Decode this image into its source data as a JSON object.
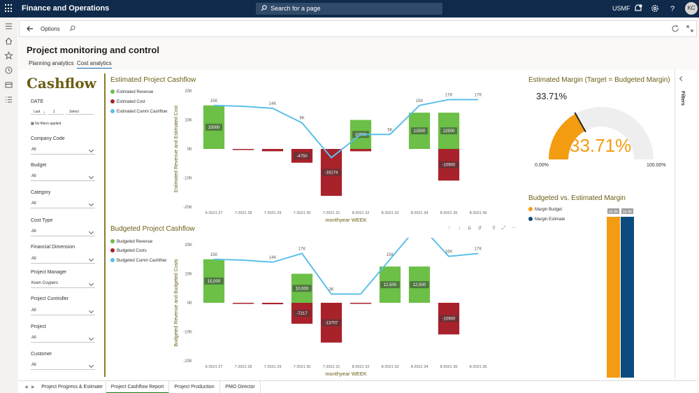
{
  "topbar": {
    "app_title": "Finance and Operations",
    "search_placeholder": "Search for a page",
    "company": "USMF",
    "avatar": "KC"
  },
  "actionbar": {
    "options": "Options"
  },
  "page": {
    "title": "Project monitoring and control",
    "tabs": [
      {
        "label": "Planning analytics"
      },
      {
        "label": "Cost analytics"
      }
    ]
  },
  "slicers": {
    "title": "Cashflow",
    "date": {
      "label": "DATE",
      "period": "Last",
      "count": "1",
      "unit": "Select",
      "no_filters": "No filters applied"
    },
    "items": [
      {
        "label": "Company Code",
        "value": "All"
      },
      {
        "label": "Budget",
        "value": "All"
      },
      {
        "label": "Category",
        "value": "All"
      },
      {
        "label": "Cost Type",
        "value": "All"
      },
      {
        "label": "Financial Dimension",
        "value": "All"
      },
      {
        "label": "Project Manager",
        "value": "Koen Cuypers"
      },
      {
        "label": "Project Controller",
        "value": "All"
      },
      {
        "label": "Project",
        "value": "All"
      },
      {
        "label": "Customer",
        "value": "All"
      }
    ]
  },
  "filters_pane": {
    "label": "Filters"
  },
  "chart_data": [
    {
      "type": "bar",
      "title": "Estimated Project Cashflow",
      "xlabel": "monthyear WEEK",
      "ylabel": "Estimated Revenue and Estimated Cost",
      "ylim": [
        -20000,
        20000
      ],
      "yticks": [
        "20K",
        "10K",
        "0K",
        "-10K",
        "-20K"
      ],
      "categories": [
        "6-2021 27",
        "7-2021 28",
        "7-2021 29",
        "7-2021 30",
        "7-2021 31",
        "8-2021 32",
        "8-2021 33",
        "8-2021 34",
        "8-2021 35",
        "8-2021 36"
      ],
      "series": [
        {
          "name": "Estimated Revenue",
          "kind": "bar",
          "color": "#6cbf47",
          "values": [
            15000,
            0,
            0,
            0,
            0,
            10000,
            0,
            12500,
            12500,
            0
          ],
          "labels": [
            "15000",
            "",
            "",
            "",
            "",
            "10000",
            "",
            "12500",
            "12500",
            ""
          ]
        },
        {
          "name": "Estimated Cost",
          "kind": "bar",
          "color": "#a8222b",
          "values": [
            0,
            -300,
            -800,
            -4750,
            -16174,
            -800,
            0,
            0,
            -10900,
            0
          ],
          "labels": [
            "",
            "",
            "",
            "-4750",
            "-16174",
            "",
            "",
            "",
            "-10900",
            ""
          ]
        },
        {
          "name": "Estimated Cumm Cashflow",
          "kind": "line",
          "color": "#5bc0e8",
          "values": [
            15000,
            14700,
            14000,
            9000,
            -3000,
            5000,
            5000,
            15000,
            17000,
            17000
          ],
          "labels": [
            "15K",
            "",
            "14K",
            "9K",
            "",
            "",
            "5K",
            "15K",
            "17K",
            "17K"
          ]
        }
      ]
    },
    {
      "type": "bar",
      "title": "Budgeted Project Cashflow",
      "xlabel": "monthyear WEEK",
      "ylabel": "Budgeted Revenue and Budgeted Costs",
      "ylim": [
        -20000,
        20000
      ],
      "yticks": [
        "20K",
        "10K",
        "0K",
        "-10K",
        "-20K"
      ],
      "categories": [
        "6-2021 27",
        "7-2021 28",
        "7-2021 29",
        "7-2021 30",
        "7-2021 31",
        "8-2021 32",
        "8-2021 33",
        "8-2021 34",
        "8-2021 35",
        "8-2021 36"
      ],
      "series": [
        {
          "name": "Budgeted Revenue",
          "kind": "bar",
          "color": "#6cbf47",
          "values": [
            15000,
            0,
            0,
            10000,
            0,
            0,
            12500,
            12500,
            0,
            0
          ],
          "labels": [
            "15,000",
            "",
            "",
            "10,000",
            "",
            "",
            "12,500",
            "12,500",
            "",
            ""
          ]
        },
        {
          "name": "Budgeted Costs",
          "kind": "bar",
          "color": "#a8222b",
          "values": [
            0,
            -300,
            -500,
            -7217,
            -13707,
            -300,
            0,
            0,
            -10900,
            0
          ],
          "labels": [
            "",
            "",
            "",
            "-7217",
            "-13707",
            "",
            "",
            "",
            "-10900",
            ""
          ]
        },
        {
          "name": "Budgeted Cumm Cashflow",
          "kind": "line",
          "color": "#5bc0e8",
          "values": [
            15000,
            14700,
            14000,
            17000,
            3000,
            3000,
            15000,
            27000,
            16000,
            17000
          ],
          "labels": [
            "15K",
            "",
            "14K",
            "17K",
            "3K",
            "",
            "15K",
            "",
            "16K",
            "17K"
          ]
        }
      ]
    },
    {
      "type": "gauge",
      "title": "Estimated Margin (Target = Budgeted Margin)",
      "value": 0.3371,
      "value_label": "33.71%",
      "min_label": "0.00%",
      "max_label": "100.00%",
      "color": "#f39c12"
    },
    {
      "type": "bar",
      "title": "Budgeted vs. Estimated Margin",
      "series": [
        {
          "name": "Margin Budget",
          "color": "#f39c12",
          "values": [
            16.9
          ],
          "labels": [
            "16.9K"
          ]
        },
        {
          "name": "Margin Estimate",
          "color": "#0b4b80",
          "values": [
            16.9
          ],
          "labels": [
            "16.9K"
          ]
        }
      ]
    }
  ],
  "bottom_tabs": [
    {
      "label": "Project Progress & Estimate"
    },
    {
      "label": "Project Cashflow Report"
    },
    {
      "label": "Project Production"
    },
    {
      "label": "PMO Director"
    }
  ]
}
